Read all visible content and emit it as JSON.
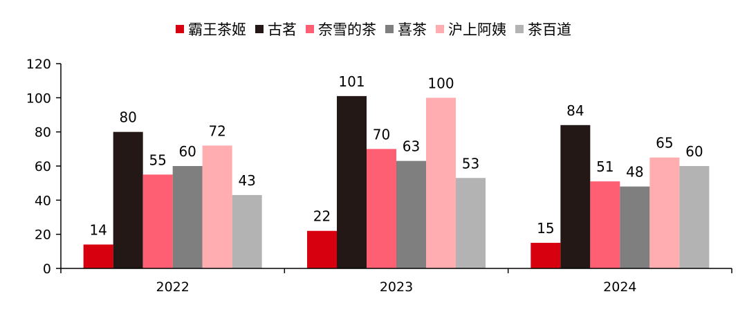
{
  "chart_data": {
    "type": "bar",
    "categories": [
      "2022",
      "2023",
      "2024"
    ],
    "series": [
      {
        "name": "霸王茶姬",
        "color": "#d7000f",
        "values": [
          14,
          22,
          15
        ]
      },
      {
        "name": "古茗",
        "color": "#231815",
        "values": [
          80,
          101,
          84
        ]
      },
      {
        "name": "奈雪的茶",
        "color": "#ff5f73",
        "values": [
          55,
          70,
          51
        ]
      },
      {
        "name": "喜茶",
        "color": "#7f7f7f",
        "values": [
          60,
          63,
          48
        ]
      },
      {
        "name": "沪上阿姨",
        "color": "#ffadb1",
        "values": [
          72,
          100,
          65
        ]
      },
      {
        "name": "茶百道",
        "color": "#b3b3b3",
        "values": [
          43,
          53,
          60
        ]
      }
    ],
    "title": "",
    "xlabel": "",
    "ylabel": "",
    "ylim": [
      0,
      120
    ],
    "yticks": [
      0,
      20,
      40,
      60,
      80,
      100,
      120
    ],
    "grid": false,
    "legend_position": "top"
  }
}
